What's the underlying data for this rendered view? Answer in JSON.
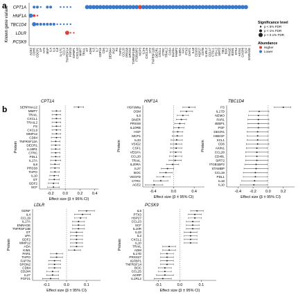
{
  "figure": {
    "panel_a_label": "a",
    "panel_b_label": "b"
  },
  "colors": {
    "higher": "#e0413a",
    "lower": "#3a78c9",
    "point": "#222222",
    "ci": "#555555",
    "zero": "#888888"
  },
  "chart_data": [
    {
      "id": "panel-a",
      "type": "scatter",
      "title": "",
      "ylabel": "Known gene variant",
      "genes": [
        "CPT1A",
        "HNF1A",
        "TBC1D4",
        "LDLR",
        "PCSK9"
      ],
      "proteins": [
        "ACE2",
        "CDH5",
        "CDCP1",
        "LIF",
        "NT3",
        "BNP",
        "IL4",
        "IL6",
        "IL8",
        "IL-17C",
        "CCL3",
        "TNFRSF14",
        "FGF23",
        "IGFBP1",
        "CXCL10",
        "MMP7",
        "TRAIL",
        "GT",
        "ADM",
        "IL5",
        "IL7",
        "GDF15",
        "CD4",
        "IL2",
        "DEFB4A",
        "PGF",
        "FS",
        "THPO",
        "CCL20",
        "PRSS8",
        "SPON2",
        "TNFRSF10B",
        "ITGB1BP2",
        "MCP3",
        "IL1ra",
        "CXCL16",
        "ST2",
        "TNFRSF11B",
        "DECR1",
        "CXCL1",
        "CTRC",
        "TRAIL2",
        "CA5A",
        "PAPPA",
        "FABP2",
        "IL6RA",
        "FAS",
        "PTX3",
        "CHIT1",
        "IL18",
        "CD163",
        "HSP27",
        "CSTB",
        "IL1RL2",
        "CCL17",
        "CTSL1",
        "PD-L2",
        "SIRT2",
        "TIE2",
        "BOC",
        "RAGE",
        "ESM1",
        "STK4",
        "AXIN1",
        "CASP8",
        "SCF",
        "ENRAGE"
      ],
      "legend": {
        "size_title": "Significance level",
        "size_items": [
          "p < 5% FDR",
          "p < 1% FDR",
          "p < 0.1% FDR"
        ],
        "color_title": "Abundance",
        "color_items": [
          "Higher",
          "Lower"
        ]
      },
      "points": [
        {
          "gene": "CPT1A",
          "x": 2,
          "size": 2,
          "dir": "lower"
        },
        {
          "gene": "CPT1A",
          "x": 3,
          "size": 2,
          "dir": "lower"
        },
        {
          "gene": "CPT1A",
          "x": 4,
          "size": 1,
          "dir": "lower"
        },
        {
          "gene": "CPT1A",
          "x": 6,
          "size": 2,
          "dir": "lower"
        },
        {
          "gene": "CPT1A",
          "x": 7,
          "size": 2,
          "dir": "lower"
        },
        {
          "gene": "CPT1A",
          "x": 10,
          "size": 1,
          "dir": "lower"
        },
        {
          "gene": "CPT1A",
          "x": 11,
          "size": 1,
          "dir": "lower"
        },
        {
          "gene": "CPT1A",
          "x": 12,
          "size": 1,
          "dir": "lower"
        },
        {
          "gene": "CPT1A",
          "x": 13,
          "size": 1,
          "dir": "lower"
        },
        {
          "gene": "CPT1A",
          "x": 18,
          "size": 3,
          "dir": "lower"
        },
        {
          "gene": "CPT1A",
          "x": 19,
          "size": 3,
          "dir": "lower"
        },
        {
          "gene": "CPT1A",
          "x": 20,
          "size": 3,
          "dir": "lower"
        },
        {
          "gene": "CPT1A",
          "x": 21,
          "size": 3,
          "dir": "lower"
        },
        {
          "gene": "CPT1A",
          "x": 22,
          "size": 3,
          "dir": "lower"
        },
        {
          "gene": "CPT1A",
          "x": 23,
          "size": 3,
          "dir": "lower"
        },
        {
          "gene": "CPT1A",
          "x": 24,
          "size": 3,
          "dir": "lower"
        },
        {
          "gene": "CPT1A",
          "x": 25,
          "size": 3,
          "dir": "lower"
        },
        {
          "gene": "CPT1A",
          "x": 26,
          "size": 3,
          "dir": "lower"
        },
        {
          "gene": "CPT1A",
          "x": 27,
          "size": 3,
          "dir": "lower"
        },
        {
          "gene": "CPT1A",
          "x": 28,
          "size": 3,
          "dir": "lower"
        },
        {
          "gene": "CPT1A",
          "x": 29,
          "size": 3,
          "dir": "lower"
        },
        {
          "gene": "CPT1A",
          "x": 30,
          "size": 3,
          "dir": "lower"
        },
        {
          "gene": "CPT1A",
          "x": 31,
          "size": 3,
          "dir": "lower"
        },
        {
          "gene": "CPT1A",
          "x": 32,
          "size": 3,
          "dir": "lower"
        },
        {
          "gene": "CPT1A",
          "x": 33,
          "size": 3,
          "dir": "lower"
        },
        {
          "gene": "CPT1A",
          "x": 34,
          "size": 3,
          "dir": "higher"
        },
        {
          "gene": "CPT1A",
          "x": 35,
          "size": 3,
          "dir": "lower"
        },
        {
          "gene": "CPT1A",
          "x": 36,
          "size": 3,
          "dir": "lower"
        },
        {
          "gene": "CPT1A",
          "x": 37,
          "size": 3,
          "dir": "lower"
        },
        {
          "gene": "CPT1A",
          "x": 38,
          "size": 3,
          "dir": "lower"
        },
        {
          "gene": "CPT1A",
          "x": 39,
          "size": 3,
          "dir": "lower"
        },
        {
          "gene": "CPT1A",
          "x": 40,
          "size": 3,
          "dir": "lower"
        },
        {
          "gene": "CPT1A",
          "x": 41,
          "size": 3,
          "dir": "lower"
        },
        {
          "gene": "CPT1A",
          "x": 42,
          "size": 3,
          "dir": "lower"
        },
        {
          "gene": "CPT1A",
          "x": 43,
          "size": 3,
          "dir": "lower"
        },
        {
          "gene": "CPT1A",
          "x": 44,
          "size": 3,
          "dir": "lower"
        },
        {
          "gene": "CPT1A",
          "x": 45,
          "size": 3,
          "dir": "lower"
        },
        {
          "gene": "CPT1A",
          "x": 46,
          "size": 3,
          "dir": "lower"
        },
        {
          "gene": "CPT1A",
          "x": 47,
          "size": 3,
          "dir": "lower"
        },
        {
          "gene": "CPT1A",
          "x": 48,
          "size": 3,
          "dir": "lower"
        },
        {
          "gene": "CPT1A",
          "x": 49,
          "size": 3,
          "dir": "lower"
        },
        {
          "gene": "CPT1A",
          "x": 50,
          "size": 3,
          "dir": "lower"
        },
        {
          "gene": "CPT1A",
          "x": 51,
          "size": 3,
          "dir": "lower"
        },
        {
          "gene": "CPT1A",
          "x": 52,
          "size": 3,
          "dir": "lower"
        },
        {
          "gene": "CPT1A",
          "x": 53,
          "size": 3,
          "dir": "lower"
        },
        {
          "gene": "CPT1A",
          "x": 54,
          "size": 3,
          "dir": "lower"
        },
        {
          "gene": "CPT1A",
          "x": 55,
          "size": 3,
          "dir": "lower"
        },
        {
          "gene": "CPT1A",
          "x": 56,
          "size": 3,
          "dir": "lower"
        },
        {
          "gene": "CPT1A",
          "x": 57,
          "size": 3,
          "dir": "lower"
        },
        {
          "gene": "CPT1A",
          "x": 58,
          "size": 3,
          "dir": "lower"
        },
        {
          "gene": "CPT1A",
          "x": 59,
          "size": 3,
          "dir": "lower"
        },
        {
          "gene": "CPT1A",
          "x": 60,
          "size": 3,
          "dir": "lower"
        },
        {
          "gene": "CPT1A",
          "x": 61,
          "size": 3,
          "dir": "lower"
        },
        {
          "gene": "CPT1A",
          "x": 62,
          "size": 3,
          "dir": "lower"
        },
        {
          "gene": "CPT1A",
          "x": 63,
          "size": 3,
          "dir": "lower"
        },
        {
          "gene": "CPT1A",
          "x": 64,
          "size": 3,
          "dir": "lower"
        },
        {
          "gene": "CPT1A",
          "x": 65,
          "size": 3,
          "dir": "lower"
        },
        {
          "gene": "CPT1A",
          "x": 66,
          "size": 3,
          "dir": "lower"
        },
        {
          "gene": "HNF1A",
          "x": 1,
          "size": 3,
          "dir": "lower"
        },
        {
          "gene": "HNF1A",
          "x": 2,
          "size": 2,
          "dir": "higher"
        },
        {
          "gene": "HNF1A",
          "x": 3,
          "size": 1,
          "dir": "higher"
        },
        {
          "gene": "TBC1D4",
          "x": 2,
          "size": 3,
          "dir": "lower"
        },
        {
          "gene": "TBC1D4",
          "x": 3,
          "size": 2,
          "dir": "lower"
        },
        {
          "gene": "TBC1D4",
          "x": 4,
          "size": 2,
          "dir": "lower"
        },
        {
          "gene": "TBC1D4",
          "x": 5,
          "size": 2,
          "dir": "lower"
        },
        {
          "gene": "TBC1D4",
          "x": 6,
          "size": 2,
          "dir": "lower"
        },
        {
          "gene": "TBC1D4",
          "x": 7,
          "size": 2,
          "dir": "lower"
        },
        {
          "gene": "TBC1D4",
          "x": 8,
          "size": 2,
          "dir": "lower"
        },
        {
          "gene": "TBC1D4",
          "x": 9,
          "size": 1,
          "dir": "lower"
        },
        {
          "gene": "TBC1D4",
          "x": 10,
          "size": 1,
          "dir": "lower"
        },
        {
          "gene": "TBC1D4",
          "x": 11,
          "size": 1,
          "dir": "lower"
        },
        {
          "gene": "TBC1D4",
          "x": 12,
          "size": 1,
          "dir": "lower"
        },
        {
          "gene": "TBC1D4",
          "x": 13,
          "size": 1,
          "dir": "lower"
        },
        {
          "gene": "LDLR",
          "x": 12,
          "size": 3,
          "dir": "higher"
        },
        {
          "gene": "LDLR",
          "x": 13,
          "size": 1,
          "dir": "higher"
        },
        {
          "gene": "LDLR",
          "x": 14,
          "size": 1,
          "dir": "higher"
        }
      ]
    },
    {
      "id": "forest-cpt1a",
      "type": "forest",
      "title": "CPT1A",
      "xlabel": "Effect size (β ± 95% CI)",
      "ylabel": "Protein",
      "xlim": [
        -0.35,
        0.45
      ],
      "xticks": [
        -0.2,
        0.0,
        0.2,
        0.4
      ],
      "xtick_labels": [
        "-0.2",
        "0.0",
        "0.2",
        "0.4"
      ],
      "labels": [
        "SERPINA12",
        "MMP7",
        "TRAIL",
        "CXCL1",
        "TRAIL2",
        "FS",
        "CXCL9",
        "MMP12",
        "CD84",
        "TNFRSF13A",
        "DECR1",
        "IL18R1",
        "CTRC",
        "PDL1",
        "IL17A",
        "IL8",
        "PRSS8",
        "THPO",
        "IL10",
        "GT",
        "GDF2",
        "SCF"
      ],
      "est": [
        0.18,
        -0.12,
        -0.12,
        -0.12,
        -0.12,
        -0.12,
        -0.12,
        -0.12,
        -0.12,
        -0.13,
        -0.13,
        -0.13,
        -0.13,
        -0.13,
        -0.13,
        -0.14,
        -0.14,
        -0.14,
        -0.15,
        -0.15,
        -0.16,
        -0.16
      ],
      "lo": [
        0.12,
        -0.18,
        -0.18,
        -0.18,
        -0.18,
        -0.18,
        -0.18,
        -0.18,
        -0.19,
        -0.19,
        -0.19,
        -0.19,
        -0.19,
        -0.19,
        -0.2,
        -0.2,
        -0.2,
        -0.2,
        -0.21,
        -0.22,
        -0.23,
        -0.24
      ],
      "hi": [
        0.25,
        -0.06,
        -0.06,
        -0.06,
        -0.06,
        -0.06,
        -0.06,
        -0.06,
        -0.06,
        -0.07,
        -0.07,
        -0.07,
        -0.07,
        -0.07,
        -0.06,
        -0.08,
        -0.08,
        -0.08,
        -0.09,
        -0.08,
        -0.09,
        -0.08
      ]
    },
    {
      "id": "forest-hnf1a",
      "type": "forest",
      "title": "HNF1A",
      "xlabel": "Effect size (β ± 95% CI)",
      "ylabel": "Protein",
      "xlim": [
        -0.6,
        0.6
      ],
      "xticks": [
        -0.4,
        0.0,
        0.4
      ],
      "xtick_labels": [
        "-0.4",
        "0.0",
        "0.4"
      ],
      "labels": [
        "HGFdelta",
        "OSM",
        "IL6",
        "DNER",
        "PRSS8",
        "IL10RB",
        "HGF",
        "MCP1",
        "IL33",
        "VSIG2",
        "CSF1",
        "VEGFA",
        "CCL20",
        "TRAIL",
        "IL20RA",
        "IL27",
        "BOC",
        "VEGFD",
        "CTRC",
        "ACE2"
      ],
      "est": [
        0.3,
        0.25,
        0.18,
        0.15,
        0.12,
        0.1,
        0.08,
        0.07,
        0.06,
        0.05,
        0.05,
        0.04,
        0.04,
        0.03,
        -0.02,
        -0.12,
        -0.15,
        -0.2,
        -0.25,
        -0.38
      ],
      "lo": [
        0.18,
        0.13,
        0.07,
        0.05,
        0.02,
        0.0,
        -0.02,
        -0.03,
        -0.05,
        -0.06,
        -0.06,
        -0.07,
        -0.08,
        -0.09,
        -0.14,
        -0.24,
        -0.27,
        -0.33,
        -0.39,
        -0.55
      ],
      "hi": [
        0.42,
        0.37,
        0.29,
        0.25,
        0.22,
        0.2,
        0.18,
        0.17,
        0.17,
        0.16,
        0.16,
        0.15,
        0.16,
        0.15,
        0.1,
        0.0,
        -0.03,
        -0.07,
        -0.11,
        -0.21
      ]
    },
    {
      "id": "forest-tbc1d4",
      "type": "forest",
      "title": "TBC1D4",
      "xlabel": "Effect size (β ± 95% CI)",
      "ylabel": "Protein",
      "xlim": [
        -0.55,
        0.35
      ],
      "xticks": [
        -0.4,
        -0.2,
        0.0,
        0.2
      ],
      "xtick_labels": [
        "-0.4",
        "-0.2",
        "0.0",
        "0.2"
      ],
      "labels": [
        "FS",
        "IL17D",
        "NEMO",
        "PAR1",
        "4EBP1",
        "PGF",
        "DECR1",
        "HBEGF",
        "XCL1",
        "CD6",
        "AXIN1",
        "CCL28",
        "CD40L",
        "SIRT2",
        "ITGB1BP2",
        "STAMBP",
        "CCL19",
        "PDL1",
        "IL18",
        "IL10"
      ],
      "est": [
        0.2,
        -0.12,
        -0.13,
        -0.13,
        -0.13,
        -0.13,
        -0.14,
        -0.14,
        -0.14,
        -0.14,
        -0.15,
        -0.15,
        -0.15,
        -0.15,
        -0.16,
        -0.16,
        -0.17,
        -0.17,
        -0.18,
        -0.19
      ],
      "lo": [
        0.08,
        -0.25,
        -0.26,
        -0.27,
        -0.27,
        -0.27,
        -0.28,
        -0.28,
        -0.28,
        -0.29,
        -0.29,
        -0.3,
        -0.3,
        -0.3,
        -0.31,
        -0.32,
        -0.33,
        -0.33,
        -0.35,
        -0.37
      ],
      "hi": [
        0.3,
        0.01,
        0.0,
        0.01,
        0.01,
        0.01,
        0.0,
        0.0,
        0.0,
        0.01,
        -0.01,
        0.0,
        0.0,
        0.0,
        -0.01,
        0.0,
        -0.01,
        -0.01,
        -0.01,
        -0.01
      ]
    },
    {
      "id": "forest-ldlr",
      "type": "forest",
      "title": "LDLR",
      "xlabel": "Effect size (β ± 95% CI)",
      "ylabel": "Protein",
      "xlim": [
        -0.17,
        0.17
      ],
      "xticks": [
        -0.1,
        0.0,
        0.1
      ],
      "xtick_labels": [
        "-0.1",
        "0.0",
        "0.1"
      ],
      "labels": [
        "GDNF",
        "IL4",
        "CCL19",
        "IL17A",
        "ENRAGE",
        "TNFRSF13B",
        "GT",
        "uPA",
        "GDF2",
        "MMP12",
        "ADA",
        "KIM1",
        "PAR1",
        "THPO",
        "FAP7N",
        "SPON2",
        "CD84",
        "CD244",
        "IL27",
        "FGF21"
      ],
      "est": [
        0.1,
        0.08,
        0.07,
        0.06,
        0.06,
        0.06,
        0.05,
        0.05,
        0.05,
        0.05,
        0.05,
        0.04,
        -0.05,
        -0.05,
        -0.06,
        -0.06,
        -0.06,
        -0.07,
        -0.07,
        -0.08
      ],
      "lo": [
        0.06,
        0.04,
        0.04,
        0.03,
        0.03,
        0.03,
        0.02,
        0.02,
        0.02,
        0.02,
        0.02,
        0.01,
        -0.08,
        -0.08,
        -0.09,
        -0.09,
        -0.09,
        -0.1,
        -0.1,
        -0.12
      ],
      "hi": [
        0.14,
        0.12,
        0.1,
        0.09,
        0.09,
        0.09,
        0.08,
        0.08,
        0.08,
        0.08,
        0.08,
        0.07,
        -0.02,
        -0.02,
        -0.03,
        -0.03,
        -0.03,
        -0.04,
        -0.04,
        -0.04
      ]
    },
    {
      "id": "forest-pcsk9",
      "type": "forest",
      "title": "PCSK9",
      "xlabel": "Effect size (β ± 95% CI)",
      "ylabel": "Protein",
      "xlim": [
        -0.17,
        0.17
      ],
      "xticks": [
        -0.1,
        0.0,
        0.1
      ],
      "xtick_labels": [
        "-0.1",
        "0.0",
        "0.1"
      ],
      "labels": [
        "IL5",
        "PTX3",
        "HSP27",
        "CCL23",
        "SCF",
        "IL10R",
        "IL33",
        "IL2",
        "CXCL1",
        "IL10",
        "TRAIL",
        "ADM",
        "IL17D",
        "PRSS27",
        "IGFBP1",
        "TNFRSF14",
        "BOC",
        "CCL25",
        "AGRP",
        "IL1RL2"
      ],
      "est": [
        0.08,
        0.07,
        0.07,
        0.06,
        0.06,
        0.06,
        0.05,
        0.05,
        0.05,
        0.05,
        -0.05,
        -0.05,
        -0.06,
        -0.06,
        -0.06,
        -0.06,
        -0.07,
        -0.07,
        -0.07,
        -0.08
      ],
      "lo": [
        0.05,
        0.04,
        0.04,
        0.03,
        0.03,
        0.03,
        0.02,
        0.02,
        0.02,
        0.02,
        -0.08,
        -0.08,
        -0.09,
        -0.09,
        -0.09,
        -0.09,
        -0.1,
        -0.1,
        -0.11,
        -0.12
      ],
      "hi": [
        0.11,
        0.1,
        0.1,
        0.09,
        0.09,
        0.09,
        0.08,
        0.08,
        0.08,
        0.08,
        -0.02,
        -0.02,
        -0.03,
        -0.03,
        -0.03,
        -0.03,
        -0.04,
        -0.04,
        -0.03,
        -0.04
      ]
    }
  ]
}
